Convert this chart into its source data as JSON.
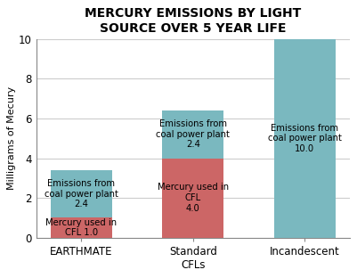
{
  "title": "MERCURY EMISSIONS BY LIGHT\nSOURCE OVER 5 YEAR LIFE",
  "ylabel": "Milligrams of Mecury",
  "categories": [
    "EARTHMATE",
    "Standard\nCFLs",
    "Incandescent"
  ],
  "mercury_used": [
    1.0,
    4.0,
    0.0
  ],
  "coal_emissions": [
    2.4,
    2.4,
    10.0
  ],
  "color_red": "#cc6666",
  "color_teal": "#7ab8bf",
  "ylim": [
    0,
    10
  ],
  "yticks": [
    0,
    2,
    4,
    6,
    8,
    10
  ],
  "bar_width": 0.55,
  "background_color": "#ffffff",
  "title_fontsize": 10,
  "label_fontsize": 8,
  "tick_fontsize": 8.5,
  "annotation_fontsize": 7.2
}
